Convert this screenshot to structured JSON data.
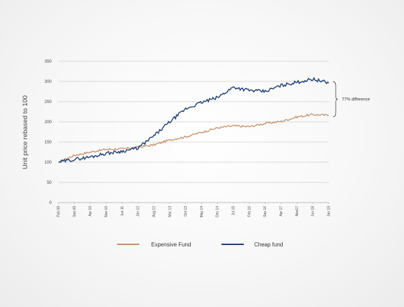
{
  "chart_data": {
    "type": "line",
    "ylabel": "Unit price rebased to 100",
    "ylim": [
      0,
      350
    ],
    "yticks": [
      0,
      50,
      100,
      150,
      200,
      250,
      300,
      350
    ],
    "xticks": [
      "Feb 09",
      "Sep 09",
      "Apr 10",
      "Nov 10",
      "Jun 11",
      "Jan 12",
      "Aug 12",
      "Mar 13",
      "Oct 13",
      "May 14",
      "Dec 14",
      "Jul 15",
      "Feb 16",
      "Sep 16",
      "Apr 17",
      "Nov17",
      "Jun 18",
      "Jan 19"
    ],
    "grid": true,
    "legend": "bottom",
    "annotation": "77% difference",
    "colors": {
      "expensive": "#c4916a",
      "cheap": "#1d3f73"
    },
    "series": [
      {
        "name": "Expensive Fund",
        "values": [
          100,
          117,
          125,
          132,
          133,
          137,
          143,
          155,
          163,
          174,
          185,
          190,
          188,
          196,
          201,
          212,
          218,
          216
        ]
      },
      {
        "name": "Cheap fund",
        "values": [
          100,
          107,
          113,
          122,
          127,
          135,
          165,
          200,
          232,
          248,
          260,
          286,
          278,
          275,
          290,
          298,
          306,
          296
        ]
      }
    ]
  }
}
